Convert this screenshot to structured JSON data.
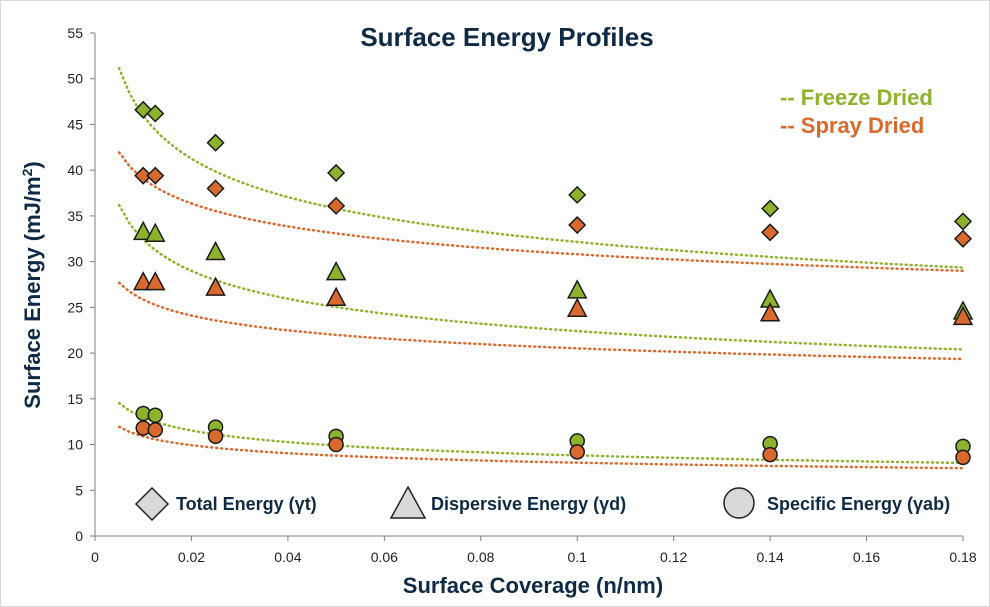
{
  "chart_data": {
    "type": "scatter",
    "title": "Surface Energy Profiles",
    "xlabel": "Surface Coverage (n/nm)",
    "ylabel_main": "Surface Energy (mJ/m",
    "ylabel_sup": "2",
    "ylabel_end": ")",
    "xlim": [
      0,
      0.18
    ],
    "ylim": [
      0,
      55
    ],
    "x_ticks": [
      {
        "value": 0,
        "label": "0"
      },
      {
        "value": 0.02,
        "label": "0.02"
      },
      {
        "value": 0.04,
        "label": "0.04"
      },
      {
        "value": 0.06,
        "label": "0.06"
      },
      {
        "value": 0.08,
        "label": "0.08"
      },
      {
        "value": 0.1,
        "label": "0.1"
      },
      {
        "value": 0.12,
        "label": "0.12"
      },
      {
        "value": 0.14,
        "label": "0.14"
      },
      {
        "value": 0.16,
        "label": "0.16"
      },
      {
        "value": 0.18,
        "label": "0.18"
      }
    ],
    "y_ticks": [
      {
        "value": 0,
        "label": "0"
      },
      {
        "value": 5,
        "label": "5"
      },
      {
        "value": 10,
        "label": "10"
      },
      {
        "value": 15,
        "label": "15"
      },
      {
        "value": 20,
        "label": "20"
      },
      {
        "value": 25,
        "label": "25"
      },
      {
        "value": 30,
        "label": "30"
      },
      {
        "value": 35,
        "label": "35"
      },
      {
        "value": 40,
        "label": "40"
      },
      {
        "value": 45,
        "label": "45"
      },
      {
        "value": 50,
        "label": "50"
      },
      {
        "value": 55,
        "label": "55"
      }
    ],
    "grid": false,
    "colors": {
      "freeze": "#8db32d",
      "spray": "#d9692c",
      "text": "#0f2a44",
      "legend_marker": "#d9d9d9"
    },
    "legend_methods": [
      {
        "label": "-- Freeze Dried",
        "color": "#8db32d"
      },
      {
        "label": "-- Spray Dried",
        "color": "#d9692c"
      }
    ],
    "legend_markers": [
      {
        "marker": "diamond",
        "label": "Total Energy (γt)"
      },
      {
        "marker": "triangle",
        "label": "Dispersive Energy (γd)"
      },
      {
        "marker": "circle",
        "label": "Specific Energy (γab)"
      }
    ],
    "series": [
      {
        "method": "freeze",
        "marker": "diamond",
        "trend": {
          "a": 22.5,
          "b": -0.155
        },
        "points": [
          [
            0.01,
            46.6
          ],
          [
            0.0125,
            46.2
          ],
          [
            0.025,
            43.0
          ],
          [
            0.05,
            39.7
          ],
          [
            0.1,
            37.3
          ],
          [
            0.14,
            35.8
          ],
          [
            0.18,
            34.4
          ]
        ]
      },
      {
        "method": "spray",
        "marker": "diamond",
        "trend": {
          "a": 24.3,
          "b": -0.103
        },
        "points": [
          [
            0.01,
            39.4
          ],
          [
            0.0125,
            39.4
          ],
          [
            0.025,
            38.0
          ],
          [
            0.05,
            36.1
          ],
          [
            0.1,
            34.0
          ],
          [
            0.14,
            33.2
          ],
          [
            0.18,
            32.5
          ]
        ]
      },
      {
        "method": "freeze",
        "marker": "triangle",
        "trend": {
          "a": 15.5,
          "b": -0.16
        },
        "points": [
          [
            0.01,
            33.2
          ],
          [
            0.0125,
            33.0
          ],
          [
            0.025,
            31.0
          ],
          [
            0.05,
            28.8
          ],
          [
            0.1,
            26.8
          ],
          [
            0.14,
            25.8
          ],
          [
            0.18,
            24.5
          ]
        ]
      },
      {
        "method": "spray",
        "marker": "triangle",
        "trend": {
          "a": 16.3,
          "b": -0.1
        },
        "points": [
          [
            0.01,
            27.7
          ],
          [
            0.0125,
            27.7
          ],
          [
            0.025,
            27.1
          ],
          [
            0.05,
            26.0
          ],
          [
            0.1,
            24.8
          ],
          [
            0.14,
            24.3
          ],
          [
            0.18,
            23.9
          ]
        ]
      },
      {
        "method": "freeze",
        "marker": "circle",
        "trend": {
          "a": 6.0,
          "b": -0.167
        },
        "points": [
          [
            0.01,
            13.4
          ],
          [
            0.0125,
            13.2
          ],
          [
            0.025,
            11.9
          ],
          [
            0.05,
            10.9
          ],
          [
            0.1,
            10.4
          ],
          [
            0.14,
            10.1
          ],
          [
            0.18,
            9.8
          ]
        ]
      },
      {
        "method": "spray",
        "marker": "circle",
        "trend": {
          "a": 5.9,
          "b": -0.133
        },
        "points": [
          [
            0.01,
            11.8
          ],
          [
            0.0125,
            11.6
          ],
          [
            0.025,
            10.9
          ],
          [
            0.05,
            10.0
          ],
          [
            0.1,
            9.2
          ],
          [
            0.14,
            8.9
          ],
          [
            0.18,
            8.6
          ]
        ]
      }
    ]
  }
}
